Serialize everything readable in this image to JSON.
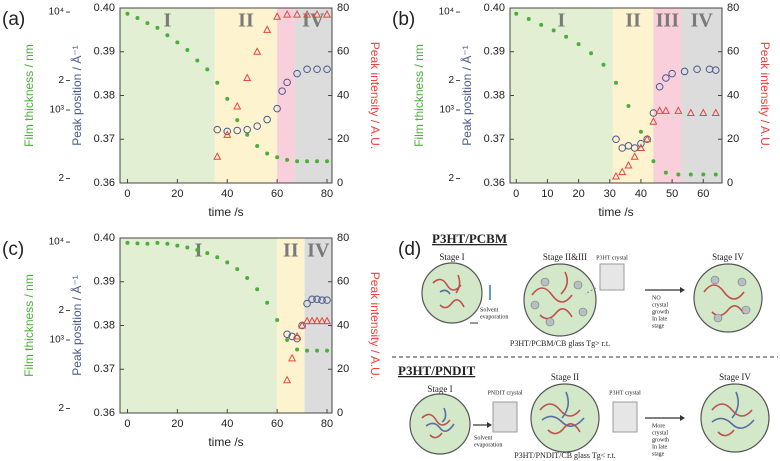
{
  "chart_data": [
    {
      "type": "scatter",
      "label": "(a)",
      "xlabel": "time /s",
      "ylabel": "Peak position / Å⁻¹",
      "y2label": "Peak intensity / A.U.",
      "y3label": "Film thickness / nm",
      "xlim": [
        -3,
        82
      ],
      "xticks": [
        0,
        20,
        40,
        60,
        80
      ],
      "ylim": [
        0.36,
        0.4
      ],
      "yticks": [
        0.36,
        0.37,
        0.38,
        0.39,
        {
          "value": 0.4,
          "label": "0.40"
        }
      ],
      "y2lim": [
        0,
        80
      ],
      "y2ticks": [
        0,
        20,
        40,
        60,
        80
      ],
      "y3lim": [
        180,
        11000
      ],
      "y3scale": "log",
      "y3ticks": [
        {
          "value": 10000,
          "label": "10⁴"
        },
        {
          "value": 2000,
          "label": "2"
        },
        {
          "value": 1000,
          "label": "10³"
        },
        {
          "value": 200,
          "label": "2"
        }
      ],
      "regions": [
        {
          "label": "I",
          "start": -3,
          "end": 35,
          "color": "#e2efd3"
        },
        {
          "label": "II",
          "start": 35,
          "end": 60,
          "color": "#fdf3cf"
        },
        {
          "label": null,
          "start": 60,
          "end": 67,
          "color": "#f8cfdb"
        },
        {
          "label": "IV",
          "start": 67,
          "end": 82,
          "color": "#dcdcdc"
        }
      ],
      "series": [
        {
          "name": "Film thickness",
          "axis": "y3",
          "marker": "dot",
          "color": "#4caf3c",
          "x": [
            0,
            4,
            8,
            12,
            16,
            20,
            24,
            28,
            32,
            36,
            40,
            44,
            48,
            52,
            56,
            60,
            64,
            68,
            72,
            76,
            80
          ],
          "values": [
            9600,
            8700,
            7700,
            6900,
            5800,
            4900,
            4100,
            3200,
            2600,
            1900,
            1300,
            790,
            560,
            430,
            360,
            330,
            310,
            300,
            300,
            300,
            300
          ]
        },
        {
          "name": "Peak position",
          "axis": "y",
          "marker": "circle",
          "color": "#4a5a8a",
          "x": [
            36,
            40,
            44,
            48,
            52,
            56,
            60,
            62,
            64,
            68,
            72,
            76,
            80
          ],
          "values": [
            0.3722,
            0.3718,
            0.372,
            0.3722,
            0.373,
            0.3745,
            0.377,
            0.381,
            0.383,
            0.385,
            0.386,
            0.386,
            0.386
          ]
        },
        {
          "name": "Peak intensity",
          "axis": "y2",
          "marker": "triangle",
          "color": "#e8453c",
          "x": [
            36,
            40,
            44,
            48,
            52,
            56,
            60,
            64,
            68,
            72,
            76,
            80
          ],
          "values": [
            12,
            22,
            35,
            48,
            60,
            70,
            76,
            77,
            77,
            77,
            77,
            77
          ]
        }
      ]
    },
    {
      "type": "scatter",
      "label": "(b)",
      "xlabel": "time /s",
      "ylabel": "Peak position / Å⁻¹",
      "y2label": "Peak intensity / A.U.",
      "y3label": "Film thickness / nm",
      "xlim": [
        -2,
        66
      ],
      "xticks": [
        0,
        10,
        20,
        30,
        40,
        50,
        60
      ],
      "ylim": [
        0.36,
        0.4
      ],
      "yticks": [
        0.36,
        0.37,
        0.38,
        0.39,
        {
          "value": 0.4,
          "label": "0.40"
        }
      ],
      "y2lim": [
        0,
        80
      ],
      "y2ticks": [
        0,
        20,
        40,
        60,
        80
      ],
      "y3lim": [
        180,
        11000
      ],
      "y3scale": "log",
      "y3ticks": [
        {
          "value": 10000,
          "label": "10⁴"
        },
        {
          "value": 2000,
          "label": "2"
        },
        {
          "value": 1000,
          "label": "10³"
        },
        {
          "value": 200,
          "label": "2"
        }
      ],
      "regions": [
        {
          "label": "I",
          "start": -2,
          "end": 31,
          "color": "#e2efd3"
        },
        {
          "label": "II",
          "start": 31,
          "end": 44,
          "color": "#fdf3cf"
        },
        {
          "label": "III",
          "start": 44,
          "end": 53,
          "color": "#f8cfdb"
        },
        {
          "label": "IV",
          "start": 53,
          "end": 66,
          "color": "#dcdcdc"
        }
      ],
      "series": [
        {
          "name": "Film thickness",
          "axis": "y3",
          "marker": "dot",
          "color": "#4caf3c",
          "x": [
            0,
            4,
            8,
            12,
            16,
            20,
            24,
            28,
            32,
            36,
            40,
            44,
            48,
            52,
            56,
            60,
            64
          ],
          "values": [
            9600,
            8500,
            7400,
            6500,
            5600,
            4700,
            3800,
            2900,
            1900,
            1100,
            600,
            300,
            230,
            220,
            220,
            220,
            220
          ]
        },
        {
          "name": "Peak position",
          "axis": "y",
          "marker": "circle",
          "color": "#4a5a8a",
          "x": [
            32,
            34,
            36,
            38,
            40,
            42,
            44,
            46,
            48,
            50,
            54,
            58,
            62,
            64
          ],
          "values": [
            0.37,
            0.368,
            0.3685,
            0.368,
            0.369,
            0.37,
            0.376,
            0.382,
            0.384,
            0.385,
            0.3855,
            0.386,
            0.386,
            0.3858
          ]
        },
        {
          "name": "Peak intensity",
          "axis": "y2",
          "marker": "triangle",
          "color": "#e8453c",
          "x": [
            32,
            34,
            36,
            38,
            40,
            42,
            44,
            46,
            48,
            52,
            56,
            60,
            64
          ],
          "values": [
            3,
            5,
            8,
            12,
            16,
            20,
            28,
            33,
            33,
            33,
            32,
            32,
            32
          ]
        }
      ]
    },
    {
      "type": "scatter",
      "label": "(c)",
      "xlabel": "time /s",
      "ylabel": "Peak position / Å⁻¹",
      "y2label": "Peak intensity / A.U.",
      "y3label": "Film thickness / nm",
      "xlim": [
        -3,
        82
      ],
      "xticks": [
        0,
        20,
        40,
        60,
        80
      ],
      "ylim": [
        0.36,
        0.4
      ],
      "yticks": [
        0.36,
        0.37,
        0.38,
        0.39,
        {
          "value": 0.4,
          "label": "0.40"
        }
      ],
      "y2lim": [
        0,
        80
      ],
      "y2ticks": [
        0,
        20,
        40,
        60,
        80
      ],
      "y3lim": [
        180,
        11000
      ],
      "y3scale": "log",
      "y3ticks": [
        {
          "value": 10000,
          "label": "10⁴"
        },
        {
          "value": 2000,
          "label": "2"
        },
        {
          "value": 1000,
          "label": "10³"
        },
        {
          "value": 200,
          "label": "2"
        }
      ],
      "regions": [
        {
          "label": "I",
          "start": -3,
          "end": 60,
          "color": "#e2efd3"
        },
        {
          "label": "II",
          "start": 60,
          "end": 71,
          "color": "#fdf3cf"
        },
        {
          "label": "IV",
          "start": 71,
          "end": 82,
          "color": "#dcdcdc"
        }
      ],
      "series": [
        {
          "name": "Film thickness",
          "axis": "y3",
          "marker": "dot",
          "color": "#4caf3c",
          "x": [
            0,
            4,
            8,
            12,
            16,
            20,
            24,
            28,
            32,
            36,
            40,
            44,
            48,
            52,
            56,
            60,
            64,
            68,
            72,
            76,
            80
          ],
          "values": [
            9800,
            9700,
            9600,
            9800,
            9600,
            9200,
            8800,
            8300,
            7700,
            7000,
            6200,
            5300,
            4300,
            3300,
            2400,
            1600,
            1000,
            800,
            780,
            780,
            780
          ]
        },
        {
          "name": "Peak position",
          "axis": "y",
          "marker": "circle",
          "color": "#4a5a8a",
          "x": [
            64,
            66,
            68,
            70,
            72,
            74,
            76,
            78,
            80
          ],
          "values": [
            0.378,
            0.3775,
            0.377,
            0.38,
            0.385,
            0.386,
            0.386,
            0.3858,
            0.3858
          ]
        },
        {
          "name": "Peak intensity",
          "axis": "y2",
          "marker": "triangle",
          "color": "#e8453c",
          "x": [
            64,
            66,
            68,
            70,
            72,
            74,
            76,
            78,
            80
          ],
          "values": [
            15,
            25,
            35,
            40,
            42,
            42,
            42,
            42,
            42
          ]
        }
      ]
    }
  ],
  "diagram": {
    "label": "(d)",
    "rows": [
      {
        "title": "P3HT/PCBM",
        "stages": [
          "Stage I",
          "Stage II&III",
          "Stage IV"
        ],
        "crystals": [
          "P3HT crystal"
        ],
        "evaporation": [
          "Solvent",
          "evaporation"
        ],
        "late": [
          "NO",
          "crystal",
          "growth",
          "In late",
          "stage"
        ],
        "glass": "P3HT/PCBM/CB glass  Tg> r.t."
      },
      {
        "title": "P3HT/PNDIT",
        "stages": [
          "Stage I",
          "Stage II",
          "Stage IV"
        ],
        "crystals": [
          "PNDIT crystal",
          "P3HT crystal"
        ],
        "evaporation": [
          "Solvent",
          "evaporation"
        ],
        "late": [
          "More",
          "crystal",
          "growth",
          "In late",
          "stage"
        ],
        "glass": "P3HT/PNDIT/CB glass Tg< r.t."
      }
    ]
  }
}
